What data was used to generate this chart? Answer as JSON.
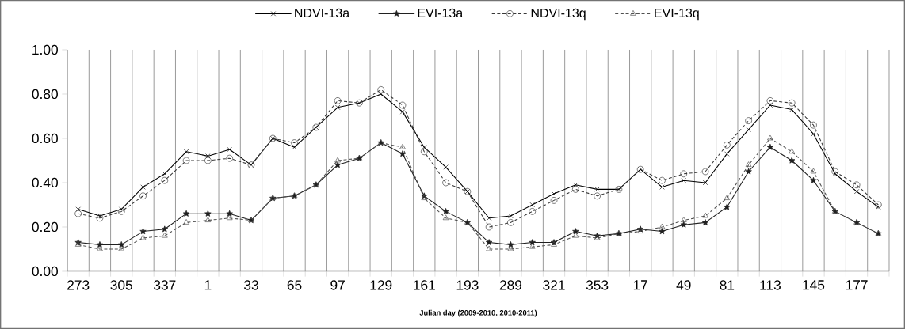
{
  "chart_data": {
    "type": "line",
    "xlabel": "Julian day (2009-2010, 2010-2011)",
    "categories": [
      "273",
      null,
      "305",
      null,
      "337",
      null,
      "1",
      null,
      "33",
      null,
      "65",
      null,
      "97",
      null,
      "129",
      null,
      "161",
      null,
      "193",
      null,
      "289",
      null,
      "321",
      null,
      "353",
      null,
      "17",
      null,
      "49",
      null,
      "81",
      null,
      "113",
      null,
      "145",
      null,
      "177",
      null
    ],
    "series": [
      {
        "name": "NDVI-13a",
        "color": "#000000",
        "marker": "cross",
        "line_style": "solid",
        "values": [
          0.28,
          0.25,
          0.28,
          0.38,
          0.44,
          0.54,
          0.52,
          0.55,
          0.48,
          0.6,
          0.56,
          0.65,
          0.74,
          0.76,
          0.8,
          0.72,
          0.56,
          0.47,
          0.36,
          0.24,
          0.25,
          0.3,
          0.35,
          0.39,
          0.37,
          0.37,
          0.46,
          0.38,
          0.41,
          0.4,
          0.53,
          0.64,
          0.75,
          0.73,
          0.62,
          0.44,
          0.36,
          0.29
        ]
      },
      {
        "name": "EVI-13a",
        "color": "#202020",
        "marker": "star",
        "line_style": "solid",
        "values": [
          0.13,
          0.12,
          0.12,
          0.18,
          0.19,
          0.26,
          0.26,
          0.26,
          0.23,
          0.33,
          0.34,
          0.39,
          0.48,
          0.51,
          0.58,
          0.53,
          0.34,
          0.27,
          0.22,
          0.13,
          0.12,
          0.13,
          0.13,
          0.18,
          0.16,
          0.17,
          0.19,
          0.18,
          0.21,
          0.22,
          0.29,
          0.45,
          0.56,
          0.5,
          0.41,
          0.27,
          0.22,
          0.17
        ]
      },
      {
        "name": "NDVI-13q",
        "color": "#383838",
        "marker": "circle",
        "line_style": "dashed",
        "values": [
          0.26,
          0.24,
          0.27,
          0.34,
          0.41,
          0.5,
          0.5,
          0.51,
          0.48,
          0.6,
          0.58,
          0.65,
          0.77,
          0.76,
          0.82,
          0.75,
          0.54,
          0.4,
          0.36,
          0.2,
          0.22,
          0.27,
          0.32,
          0.37,
          0.34,
          0.37,
          0.46,
          0.41,
          0.44,
          0.45,
          0.57,
          0.68,
          0.77,
          0.76,
          0.66,
          0.45,
          0.39,
          0.3
        ]
      },
      {
        "name": "EVI-13q",
        "color": "#505050",
        "marker": "triangle",
        "line_style": "dashed",
        "values": [
          0.12,
          0.1,
          0.1,
          0.15,
          0.16,
          0.22,
          0.23,
          0.24,
          0.23,
          0.33,
          0.34,
          0.39,
          0.5,
          0.51,
          0.58,
          0.56,
          0.33,
          0.24,
          0.22,
          0.1,
          0.1,
          0.11,
          0.12,
          0.16,
          0.15,
          0.17,
          0.18,
          0.2,
          0.23,
          0.25,
          0.33,
          0.48,
          0.6,
          0.54,
          0.45,
          0.27,
          0.22,
          0.17
        ]
      }
    ],
    "ylim": [
      0,
      1
    ],
    "yticks": [
      {
        "value": 0,
        "label": "0.00"
      },
      {
        "value": 0.2,
        "label": "0.20"
      },
      {
        "value": 0.4,
        "label": "0.40"
      },
      {
        "value": 0.6,
        "label": "0.60"
      },
      {
        "value": 0.8,
        "label": "0.80"
      },
      {
        "value": 1,
        "label": "1.00"
      }
    ],
    "grid": "x",
    "legend": "top"
  }
}
